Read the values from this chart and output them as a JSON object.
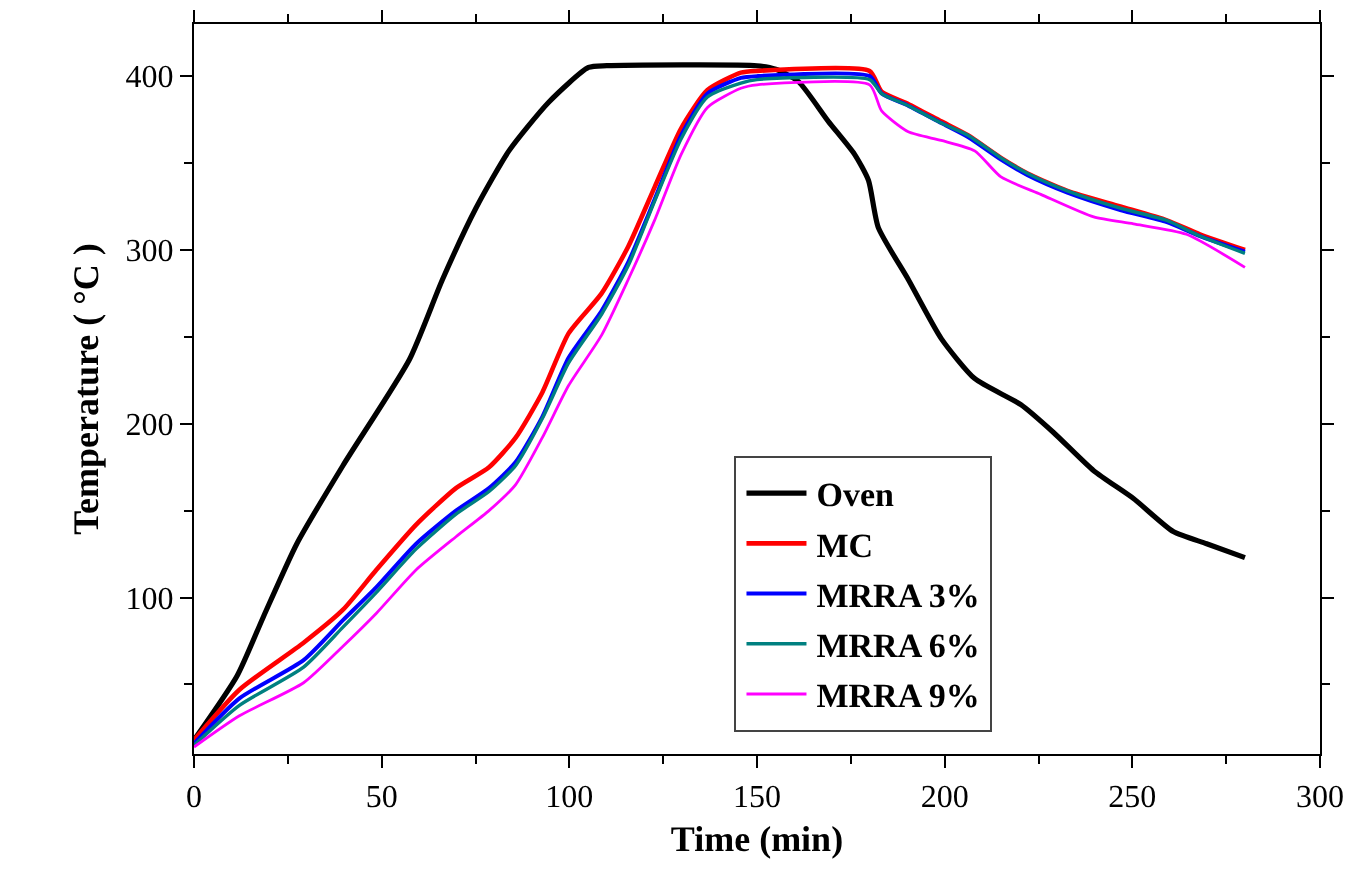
{
  "chart_data": {
    "type": "line",
    "xlabel": "Time (min)",
    "ylabel": "Temperature ( °C )",
    "xlim": [
      0,
      300
    ],
    "xticks": [
      0,
      50,
      100,
      150,
      200,
      250,
      300
    ],
    "ylim": [
      10,
      430
    ],
    "yticks": [
      100,
      200,
      300,
      400
    ],
    "grid": false,
    "legend": "bottom right",
    "marker": "none",
    "line_style": "solid",
    "series": [
      {
        "name": "Oven",
        "color": "#000000",
        "x": [
          0,
          11.5,
          18.5,
          27.4,
          39.7,
          57.4,
          66.2,
          75.1,
          83.9,
          94.5,
          105.1,
          110,
          150,
          155,
          161,
          169,
          176,
          179.7,
          182.3,
          190.3,
          199.1,
          208,
          220.3,
          229,
          239.7,
          250.3,
          260.9,
          269.8,
          280
        ],
        "values": [
          18,
          55,
          89,
          131,
          176,
          237,
          283,
          324,
          357,
          385,
          405,
          406,
          406,
          404,
          397,
          374,
          355,
          340,
          313,
          283,
          249,
          226,
          211,
          195,
          173,
          157,
          138,
          131,
          123
        ]
      },
      {
        "name": "MC",
        "color": "#ff0000",
        "x": [
          0,
          12.1,
          29.2,
          39.7,
          48.6,
          59.2,
          69.8,
          78.6,
          85.7,
          92.8,
          99.8,
          108.6,
          115.7,
          122.7,
          129.8,
          136.8,
          145.7,
          150,
          180,
          183.2,
          190.3,
          199.1,
          206.2,
          215,
          222.1,
          232.7,
          246.8,
          259.2,
          268,
          280
        ],
        "values": [
          18,
          47,
          74,
          93,
          116,
          142,
          163,
          175,
          192,
          218,
          252,
          275,
          302,
          336,
          370,
          392,
          402,
          403,
          403,
          391,
          384,
          374,
          366,
          353,
          344,
          334,
          325,
          317,
          309,
          300
        ]
      },
      {
        "name": "MRRA 3%",
        "color": "#0000ff",
        "x": [
          0,
          12.1,
          29.2,
          39.7,
          48.6,
          59.2,
          69.8,
          78.6,
          85.7,
          92.8,
          99.8,
          108.6,
          115.7,
          122.7,
          129.8,
          136.8,
          145.7,
          150,
          180,
          183.2,
          190.3,
          199.1,
          206.2,
          215,
          222.1,
          232.7,
          246.8,
          259.2,
          268,
          280
        ],
        "values": [
          16,
          42,
          64,
          87,
          106,
          131,
          150,
          163,
          178,
          204,
          238,
          265,
          293,
          329,
          366,
          390,
          399,
          400,
          400,
          390,
          383,
          373,
          365,
          352,
          343,
          333,
          323,
          316,
          308,
          299
        ]
      },
      {
        "name": "MRRA 6%",
        "color": "#008080",
        "x": [
          0,
          12.1,
          29.2,
          39.7,
          48.6,
          59.2,
          69.8,
          78.6,
          85.7,
          92.8,
          99.8,
          108.6,
          115.7,
          122.7,
          129.8,
          136.8,
          145.7,
          150,
          180,
          183.2,
          190.3,
          199.1,
          206.2,
          215,
          222.1,
          232.7,
          246.8,
          259.2,
          268,
          280
        ],
        "values": [
          15,
          38,
          60,
          83,
          103,
          128,
          148,
          161,
          176,
          203,
          235,
          263,
          291,
          328,
          364,
          388,
          396,
          398,
          398,
          390,
          383,
          373,
          366,
          353,
          344,
          334,
          324,
          317,
          308,
          298
        ]
      },
      {
        "name": "MRRA 9%",
        "color": "#ff00ff",
        "x": [
          0,
          12.1,
          29.2,
          39.7,
          48.6,
          59.2,
          69.8,
          78.6,
          85.7,
          92.8,
          99.8,
          108.6,
          115.7,
          122.7,
          129.8,
          136.8,
          145.7,
          150,
          180,
          183.2,
          190.3,
          199.1,
          208,
          215,
          225.6,
          239.7,
          250.3,
          264.4,
          280
        ],
        "values": [
          14,
          32,
          51,
          72,
          91,
          116,
          135,
          150,
          165,
          192,
          222,
          251,
          283,
          317,
          355,
          382,
          393,
          395,
          395,
          380,
          368,
          363,
          357,
          342,
          332,
          319,
          315,
          309,
          290
        ]
      }
    ]
  }
}
